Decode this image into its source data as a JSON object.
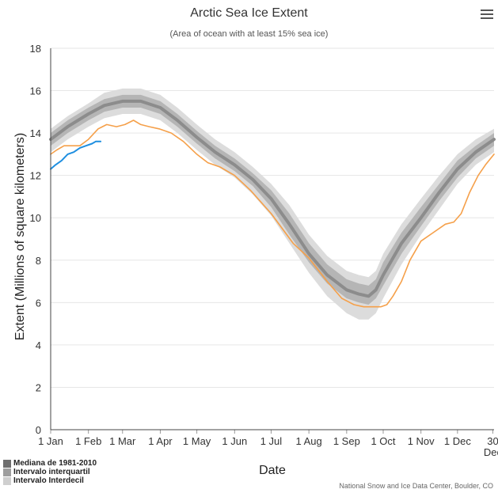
{
  "menu_icon": "hamburger-menu-icon",
  "colors": {
    "median": "#8c8c8c",
    "interquartile": "#b5b5b5",
    "interdecile": "#dcdcdc",
    "current_year": "#1f8fe0",
    "previous_year": "#f5a04a",
    "legend_median": "#6e6e6e",
    "legend_iqr": "#9e9e9e",
    "legend_idr": "#cfcfcf"
  },
  "legend": {
    "median": "Mediana de 1981-2010",
    "interquartile": "Intervalo interquartil",
    "interdecile": "Intervalo Interdecil"
  },
  "credit": "National Snow and Ice Data Center, Boulder, CO",
  "chart_data": {
    "type": "line",
    "title": "Arctic Sea Ice Extent",
    "subtitle": "(Area of ocean with at least 15% sea ice)",
    "xlabel": "Date",
    "ylabel": "Extent (Millions of square kilometers)",
    "ylim": [
      0,
      18
    ],
    "xlim": [
      1,
      365
    ],
    "y_ticks": [
      "0",
      "2",
      "4",
      "6",
      "8",
      "10",
      "12",
      "14",
      "16",
      "18"
    ],
    "x_ticks": [
      {
        "day": 1,
        "label": "1 Jan"
      },
      {
        "day": 32,
        "label": "1 Feb"
      },
      {
        "day": 60,
        "label": "1 Mar"
      },
      {
        "day": 91,
        "label": "1 Apr"
      },
      {
        "day": 121,
        "label": "1 May"
      },
      {
        "day": 152,
        "label": "1 Jun"
      },
      {
        "day": 182,
        "label": "1 Jul"
      },
      {
        "day": 213,
        "label": "1 Aug"
      },
      {
        "day": 244,
        "label": "1 Sep"
      },
      {
        "day": 274,
        "label": "1 Oct"
      },
      {
        "day": 305,
        "label": "1 Nov"
      },
      {
        "day": 335,
        "label": "1 Dec"
      },
      {
        "day": 364,
        "label": "30",
        "label2": "Dec"
      }
    ],
    "grid": true,
    "legend_position": "bottom-left",
    "series": [
      {
        "name": "Mediana de 1981-2010",
        "x": [
          1,
          15,
          32,
          45,
          60,
          75,
          91,
          105,
          121,
          136,
          152,
          167,
          182,
          197,
          213,
          228,
          244,
          254,
          262,
          268,
          274,
          289,
          305,
          320,
          335,
          350,
          365
        ],
        "values": [
          13.7,
          14.3,
          14.9,
          15.3,
          15.5,
          15.5,
          15.2,
          14.6,
          13.8,
          13.1,
          12.5,
          11.8,
          10.9,
          9.7,
          8.3,
          7.3,
          6.6,
          6.4,
          6.3,
          6.6,
          7.3,
          8.8,
          10.0,
          11.2,
          12.3,
          13.1,
          13.7
        ]
      },
      {
        "name": "Intervalo interquartil",
        "x": [
          1,
          15,
          32,
          45,
          60,
          75,
          91,
          105,
          121,
          136,
          152,
          167,
          182,
          197,
          213,
          228,
          244,
          254,
          262,
          268,
          274,
          289,
          305,
          320,
          335,
          350,
          365
        ],
        "upper": [
          14.0,
          14.6,
          15.2,
          15.6,
          15.8,
          15.8,
          15.5,
          14.9,
          14.1,
          13.4,
          12.8,
          12.1,
          11.3,
          10.2,
          8.8,
          7.8,
          7.1,
          6.9,
          6.8,
          7.1,
          7.9,
          9.3,
          10.5,
          11.6,
          12.7,
          13.4,
          14.0
        ],
        "lower": [
          13.4,
          14.0,
          14.6,
          15.0,
          15.2,
          15.2,
          14.9,
          14.3,
          13.5,
          12.8,
          12.2,
          11.5,
          10.5,
          9.2,
          7.9,
          6.9,
          6.2,
          6.0,
          5.9,
          6.2,
          6.8,
          8.3,
          9.6,
          10.8,
          11.9,
          12.8,
          13.4
        ]
      },
      {
        "name": "Intervalo Interdecil",
        "x": [
          1,
          15,
          32,
          45,
          60,
          75,
          91,
          105,
          121,
          136,
          152,
          167,
          182,
          197,
          213,
          228,
          244,
          254,
          262,
          268,
          274,
          289,
          305,
          320,
          335,
          350,
          365
        ],
        "upper": [
          14.2,
          14.8,
          15.4,
          15.9,
          16.1,
          16.1,
          15.8,
          15.2,
          14.4,
          13.7,
          13.1,
          12.4,
          11.6,
          10.6,
          9.2,
          8.2,
          7.5,
          7.3,
          7.2,
          7.5,
          8.3,
          9.7,
          10.9,
          12.0,
          13.0,
          13.7,
          14.2
        ],
        "lower": [
          13.1,
          13.7,
          14.3,
          14.7,
          14.9,
          14.9,
          14.6,
          14.0,
          13.2,
          12.5,
          11.9,
          11.1,
          10.1,
          8.8,
          7.4,
          6.3,
          5.5,
          5.2,
          5.2,
          5.5,
          6.2,
          7.8,
          9.2,
          10.4,
          11.6,
          12.5,
          13.1
        ]
      },
      {
        "name": "",
        "color_key": "current_year",
        "x": [
          1,
          5,
          10,
          15,
          20,
          25,
          30,
          35,
          38,
          42
        ],
        "values": [
          12.3,
          12.5,
          12.7,
          13.0,
          13.1,
          13.3,
          13.4,
          13.5,
          13.6,
          13.6
        ]
      },
      {
        "name": "",
        "color_key": "previous_year",
        "x": [
          1,
          6,
          12,
          18,
          25,
          32,
          40,
          47,
          55,
          62,
          69,
          75,
          82,
          90,
          100,
          110,
          121,
          130,
          140,
          152,
          165,
          182,
          200,
          213,
          228,
          240,
          250,
          258,
          266,
          272,
          277,
          282,
          289,
          296,
          305,
          315,
          325,
          332,
          338,
          345,
          352,
          358,
          365
        ],
        "values": [
          13.0,
          13.2,
          13.4,
          13.4,
          13.4,
          13.7,
          14.2,
          14.4,
          14.3,
          14.4,
          14.6,
          14.4,
          14.3,
          14.2,
          14.0,
          13.6,
          13.0,
          12.6,
          12.4,
          12.0,
          11.3,
          10.2,
          8.8,
          8.1,
          7.0,
          6.2,
          5.9,
          5.8,
          5.8,
          5.8,
          5.9,
          6.3,
          7.0,
          8.0,
          8.9,
          9.3,
          9.7,
          9.8,
          10.2,
          11.2,
          12.0,
          12.5,
          13.0
        ]
      }
    ]
  }
}
